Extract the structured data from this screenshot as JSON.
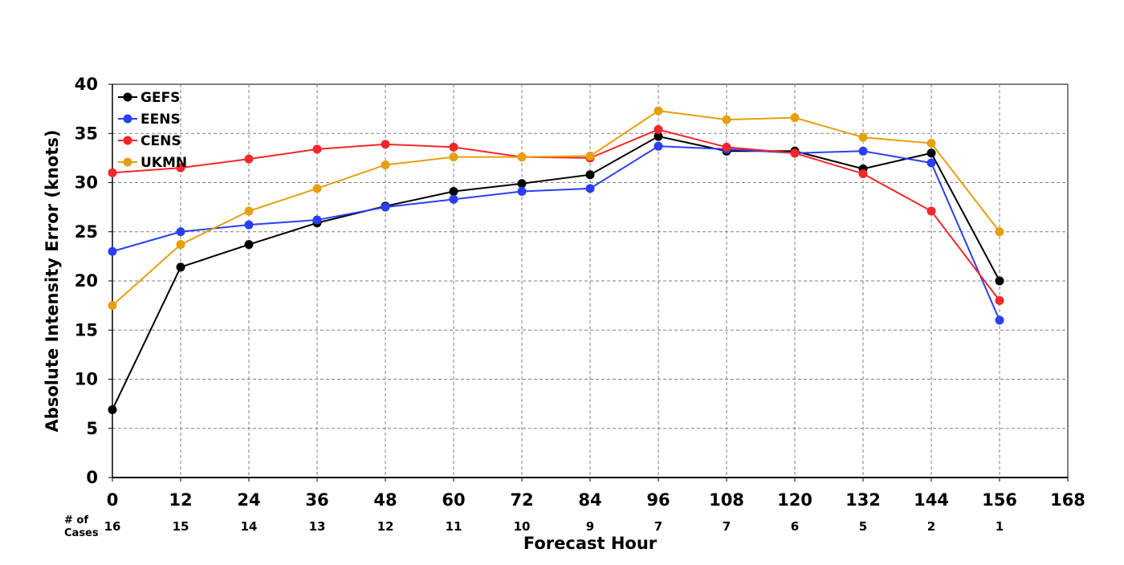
{
  "chart_data": {
    "type": "line",
    "xlabel": "Forecast Hour",
    "ylabel": "Absolute Intensity Error (knots)",
    "xlim": [
      0,
      168
    ],
    "ylim": [
      0,
      40
    ],
    "x_ticks": [
      0,
      12,
      24,
      36,
      48,
      60,
      72,
      84,
      96,
      108,
      120,
      132,
      144,
      156,
      168
    ],
    "y_ticks": [
      0,
      5,
      10,
      15,
      20,
      25,
      30,
      35,
      40
    ],
    "grid": true,
    "legend_position": "top-left",
    "cases_label": "# of Cases",
    "cases_label_lines": [
      "# of",
      "Cases"
    ],
    "case_counts": [
      {
        "x": 0,
        "n": "16"
      },
      {
        "x": 12,
        "n": "15"
      },
      {
        "x": 24,
        "n": "14"
      },
      {
        "x": 36,
        "n": "13"
      },
      {
        "x": 48,
        "n": "12"
      },
      {
        "x": 60,
        "n": "11"
      },
      {
        "x": 72,
        "n": "10"
      },
      {
        "x": 84,
        "n": "9"
      },
      {
        "x": 96,
        "n": "7"
      },
      {
        "x": 108,
        "n": "7"
      },
      {
        "x": 120,
        "n": "6"
      },
      {
        "x": 132,
        "n": "5"
      },
      {
        "x": 144,
        "n": "2"
      },
      {
        "x": 156,
        "n": "1"
      }
    ],
    "x": [
      0,
      12,
      24,
      36,
      48,
      60,
      72,
      84,
      96,
      108,
      120,
      132,
      144,
      156
    ],
    "series": [
      {
        "name": "GEFS",
        "color": "#000000",
        "values": [
          6.9,
          21.4,
          23.7,
          25.9,
          27.6,
          29.1,
          29.9,
          30.8,
          34.7,
          33.2,
          33.2,
          31.4,
          33.0,
          20.0
        ]
      },
      {
        "name": "EENS",
        "color": "#2a3ff5",
        "values": [
          23.0,
          25.0,
          25.7,
          26.2,
          27.5,
          28.3,
          29.1,
          29.4,
          33.7,
          33.4,
          33.0,
          33.2,
          32.0,
          16.0
        ]
      },
      {
        "name": "CENS",
        "color": "#f5262a",
        "values": [
          31.0,
          31.5,
          32.4,
          33.4,
          33.9,
          33.6,
          32.6,
          32.5,
          35.4,
          33.6,
          33.0,
          30.9,
          27.1,
          18.0
        ]
      },
      {
        "name": "UKMN",
        "color": "#e69f10",
        "values": [
          17.5,
          23.7,
          27.1,
          29.4,
          31.8,
          32.6,
          32.6,
          32.7,
          37.3,
          36.4,
          36.6,
          34.6,
          34.0,
          25.0
        ]
      }
    ]
  }
}
